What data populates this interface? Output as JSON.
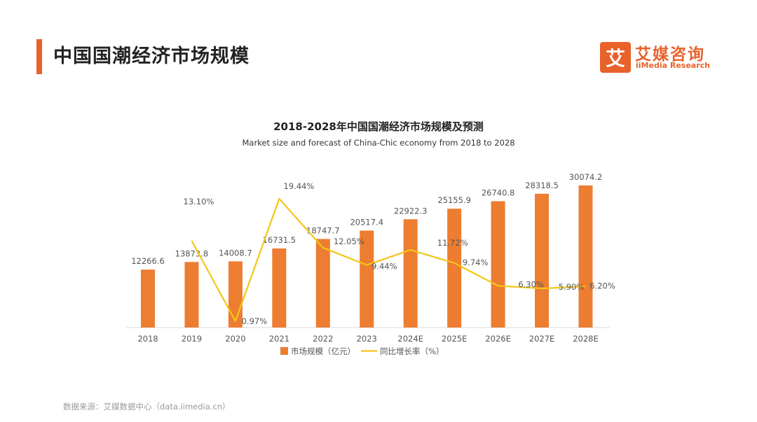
{
  "header": {
    "title": "中国国潮经济市场规模",
    "accent_color": "#e8622a"
  },
  "logo": {
    "mark": "艾",
    "name": "艾媒咨询",
    "subtitle": "iiMedia Research"
  },
  "chart_data": {
    "type": "bar",
    "title": "2018-2028年中国国潮经济市场规模及预测",
    "subtitle": "Market size and forecast of China-Chic economy from 2018 to 2028",
    "categories": [
      "2018",
      "2019",
      "2020",
      "2021",
      "2022",
      "2023",
      "2024E",
      "2025E",
      "2026E",
      "2027E",
      "2028E"
    ],
    "series": [
      {
        "name": "市场规模（亿元）",
        "kind": "bar",
        "color": "#ed7d31",
        "values": [
          12266.6,
          13873.8,
          14008.7,
          16731.5,
          18747.7,
          20517.4,
          22922.3,
          25155.9,
          26740.8,
          28318.5,
          30074.2
        ],
        "labels": [
          "12266.6",
          "13873.8",
          "14008.7",
          "16731.5",
          "18747.7",
          "20517.4",
          "22922.3",
          "25155.9",
          "26740.8",
          "28318.5",
          "30074.2"
        ]
      },
      {
        "name": "同比增长率（%）",
        "kind": "line",
        "color": "#f5c518",
        "values": [
          null,
          13.1,
          0.97,
          19.44,
          12.05,
          9.44,
          11.72,
          9.74,
          6.3,
          5.9,
          6.2
        ],
        "labels": [
          "",
          "13.10%",
          "0.97%",
          "19.44%",
          "12.05%",
          "9.44%",
          "11.72%",
          "9.74%",
          "6.30%",
          "5.90%",
          "6.20%"
        ]
      }
    ],
    "ylim_bar": [
      0,
      30074.2
    ],
    "ylim_line": [
      0,
      20
    ],
    "legend_position": "bottom-center"
  },
  "footer": {
    "source": "数据来源：艾媒数据中心（data.iimedia.cn）"
  }
}
